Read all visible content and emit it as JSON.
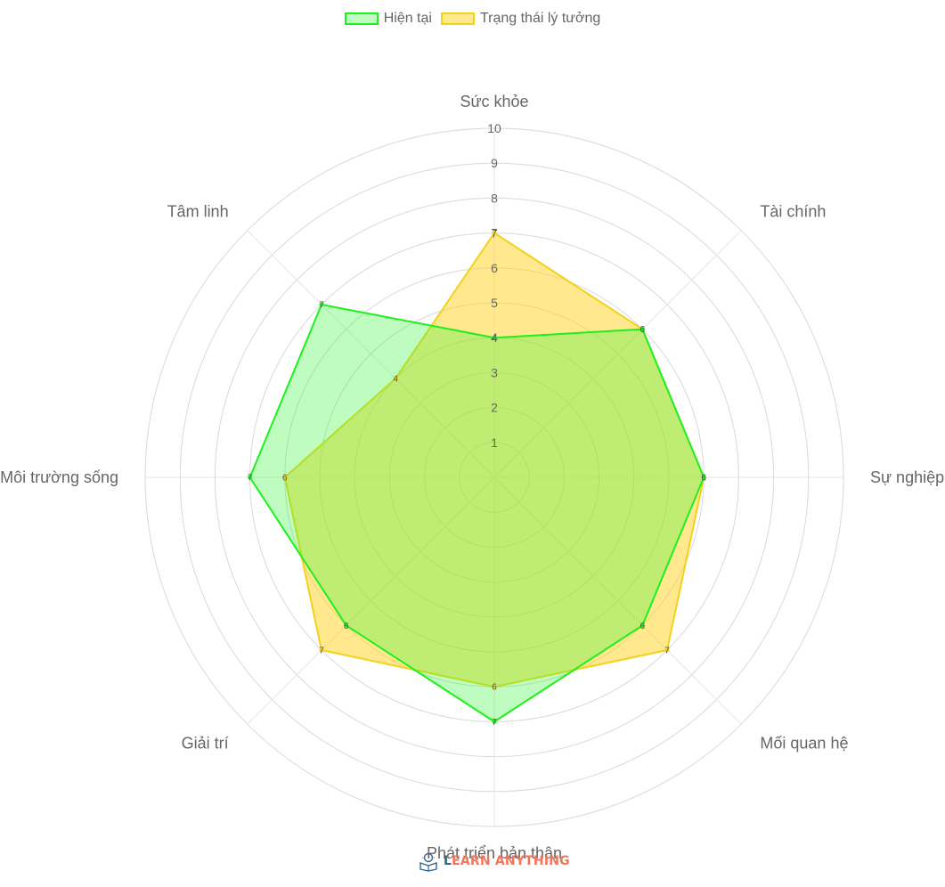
{
  "legend": {
    "current_label": "Hiện tại",
    "ideal_label": "Trạng thái lý tưởng"
  },
  "logo": {
    "first_letter": "L",
    "rest": "EARN ANYTHING"
  },
  "colors": {
    "current_stroke": "#1ef01e",
    "current_fill": "rgba(60, 245, 60, 0.33)",
    "ideal_stroke": "#f2d21a",
    "ideal_fill": "rgba(255, 210, 30, 0.50)",
    "grid": "#d9d9d9",
    "text": "#666666"
  },
  "chart_data": {
    "type": "radar",
    "title": "",
    "categories": [
      "Sức khỏe",
      "Tài chính",
      "Sự nghiệp",
      "Mối quan hệ",
      "Phát triển bản thân",
      "Giải trí",
      "Môi trường sống",
      "Tâm linh"
    ],
    "series": [
      {
        "name": "Hiện tại",
        "values": [
          4,
          6,
          6,
          6,
          7,
          6,
          7,
          7
        ]
      },
      {
        "name": "Trạng thái lý tưởng",
        "values": [
          7,
          6,
          6,
          7,
          6,
          7,
          6,
          4
        ]
      }
    ],
    "rlim": [
      0,
      10
    ],
    "ticks": [
      1,
      2,
      3,
      4,
      5,
      6,
      7,
      8,
      9,
      10
    ],
    "grid": true,
    "legend_position": "top"
  }
}
